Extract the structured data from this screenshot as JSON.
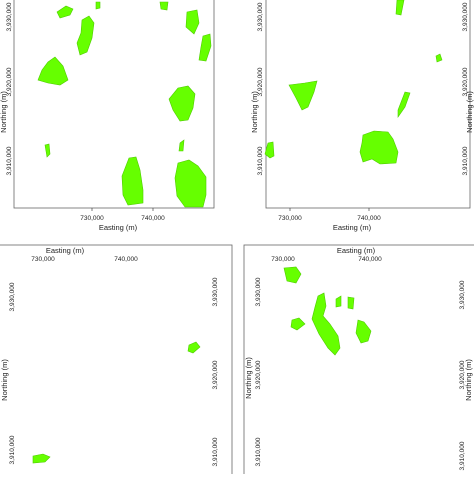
{
  "axis_labels": {
    "easting": "Easting (m)",
    "northing": "Northing (m)"
  },
  "tick_labels": {
    "e730": "730,000",
    "e740": "740,000",
    "n3930": "3,930,000",
    "n3920": "3,920,000",
    "n3910": "3,910,000"
  },
  "colors": {
    "patch_fill": "#66ff00",
    "patch_edge": "#4fcc00",
    "frame": "#666666"
  },
  "panels": [
    {
      "id": "top-left",
      "patch_count": 14
    },
    {
      "id": "top-right",
      "patch_count": 7
    },
    {
      "id": "bottom-left",
      "patch_count": 2
    },
    {
      "id": "bottom-right",
      "patch_count": 7
    }
  ]
}
